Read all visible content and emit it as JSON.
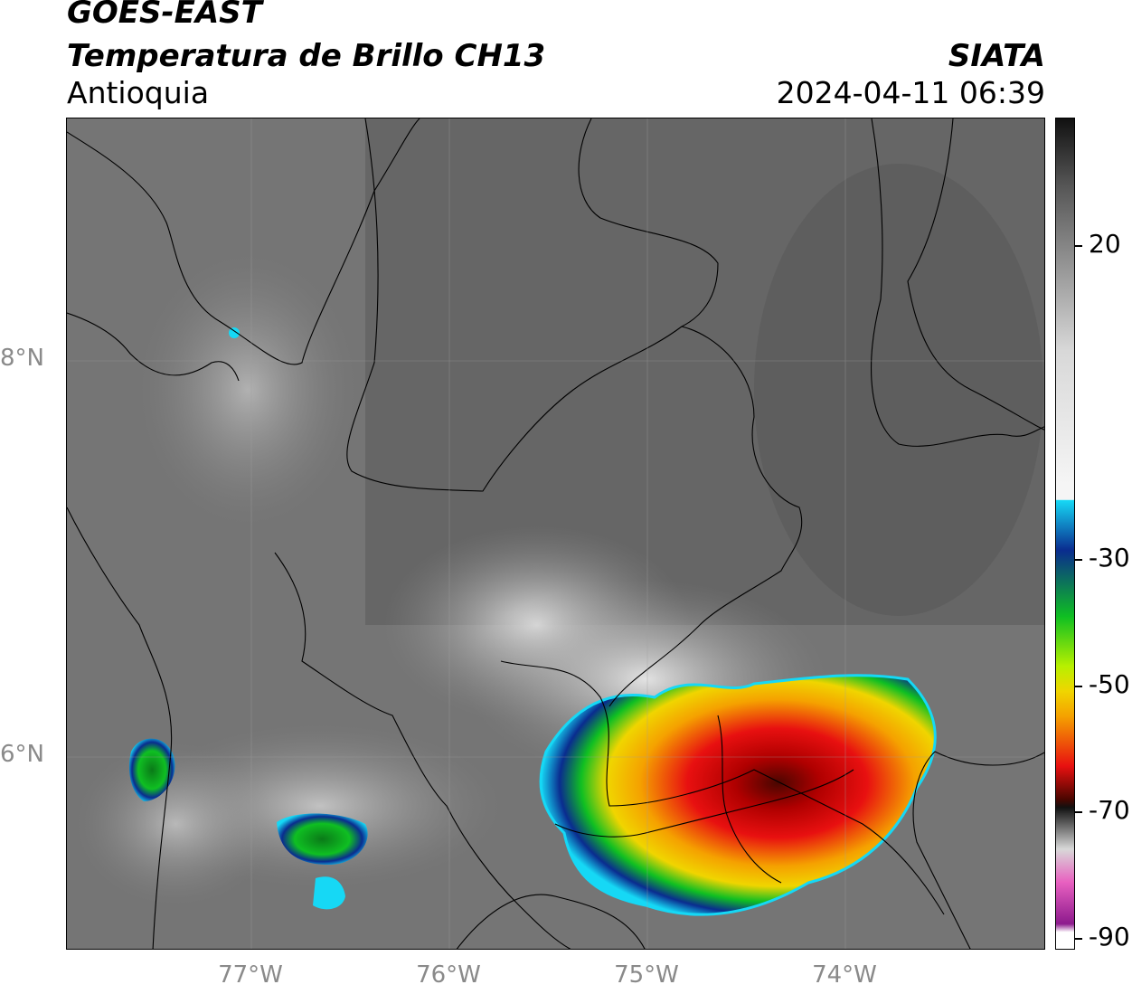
{
  "header": {
    "satellite": "GOES-EAST",
    "product": "Temperatura de Brillo CH13",
    "region": "Antioquia",
    "agency": "SIATA",
    "datetime": "2024-04-11 06:39"
  },
  "axes": {
    "lat_labels": [
      "8°N",
      "6°N"
    ],
    "lon_labels": [
      "77°W",
      "76°W",
      "75°W",
      "74°W"
    ]
  },
  "colorbar": {
    "labels": [
      "20",
      "-30",
      "-50",
      "-70",
      "-90"
    ],
    "colors": {
      "black": "#111111",
      "gray_dark": "#555555",
      "gray_light": "#d8d8d8",
      "white": "#f5f5f5",
      "cyan": "#16d8f5",
      "blue": "#0a2c8f",
      "green": "#0fbf22",
      "lime": "#b8f000",
      "yellow": "#f0d500",
      "orange": "#f5a100",
      "red": "#e81010",
      "dark_red": "#4a0600",
      "pink": "#e860c0",
      "purple": "#8d1a8d"
    }
  }
}
